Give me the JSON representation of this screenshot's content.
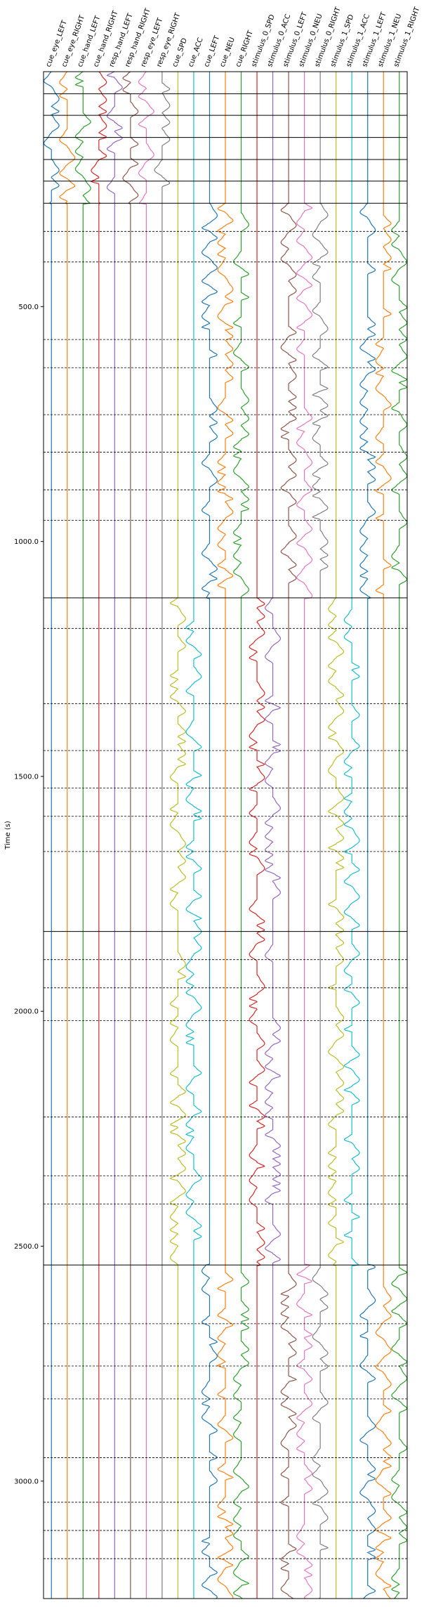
{
  "chart_data": {
    "type": "line",
    "ylabel": "Time (s)",
    "ylim": [
      3250,
      0
    ],
    "yticks": [
      500.0,
      1000.0,
      1500.0,
      2000.0,
      2500.0,
      3000.0
    ],
    "ytick_labels": [
      "500.0",
      "1000.0",
      "1500.0",
      "2000.0",
      "2500.0",
      "3000.0"
    ],
    "columns": [
      {
        "name": "cue_eye_LEFT",
        "color": "#1f77b4"
      },
      {
        "name": "cue_eye_RIGHT",
        "color": "#ff7f0e"
      },
      {
        "name": "cue_hand_LEFT",
        "color": "#2ca02c"
      },
      {
        "name": "cue_hand_RIGHT",
        "color": "#d62728"
      },
      {
        "name": "resp_hand_LEFT",
        "color": "#9467bd"
      },
      {
        "name": "resp_hand_RIGHT",
        "color": "#8c564b"
      },
      {
        "name": "resp_eye_LEFT",
        "color": "#e377c2"
      },
      {
        "name": "resp_eye_RIGHT",
        "color": "#7f7f7f"
      },
      {
        "name": "cue_SPD",
        "color": "#bcbd22"
      },
      {
        "name": "cue_ACC",
        "color": "#17becf"
      },
      {
        "name": "cue_LEFT",
        "color": "#1f77b4"
      },
      {
        "name": "cue_NEU",
        "color": "#ff7f0e"
      },
      {
        "name": "cue_RIGHT",
        "color": "#2ca02c"
      },
      {
        "name": "stimulus_0_SPD",
        "color": "#d62728"
      },
      {
        "name": "stimulus_0_ACC",
        "color": "#9467bd"
      },
      {
        "name": "stimulus_0_LEFT",
        "color": "#8c564b"
      },
      {
        "name": "stimulus_0_NEU",
        "color": "#e377c2"
      },
      {
        "name": "stimulus_0_RIGHT",
        "color": "#7f7f7f"
      },
      {
        "name": "stimulus_1_SPD",
        "color": "#bcbd22"
      },
      {
        "name": "stimulus_1_ACC",
        "color": "#17becf"
      },
      {
        "name": "stimulus_1_LEFT",
        "color": "#1f77b4"
      },
      {
        "name": "stimulus_1_NEU",
        "color": "#ff7f0e"
      },
      {
        "name": "stimulus_1_RIGHT",
        "color": "#2ca02c"
      }
    ],
    "run_boundaries": [
      0,
      47,
      93,
      140,
      187,
      233,
      280,
      1120,
      1830,
      2540,
      3250
    ],
    "block_boundaries": [
      340,
      405,
      570,
      630,
      730,
      810,
      890,
      955,
      1185,
      1345,
      1445,
      1525,
      1585,
      1660,
      1890,
      1950,
      2020,
      2225,
      2350,
      2410,
      2665,
      2755,
      2825,
      2950,
      3045,
      3105,
      3165
    ],
    "active_segments": [
      {
        "start": 0,
        "end": 280,
        "columns": [
          0,
          1,
          2,
          3,
          4,
          5,
          6,
          7
        ]
      },
      {
        "start": 280,
        "end": 1120,
        "columns": [
          10,
          11,
          12,
          15,
          16,
          17,
          20,
          21,
          22
        ]
      },
      {
        "start": 1120,
        "end": 2540,
        "columns": [
          8,
          9,
          13,
          14,
          18,
          19
        ]
      },
      {
        "start": 2540,
        "end": 3250,
        "columns": [
          10,
          11,
          12,
          15,
          16,
          17,
          20,
          21,
          22
        ]
      }
    ],
    "grid": false
  }
}
